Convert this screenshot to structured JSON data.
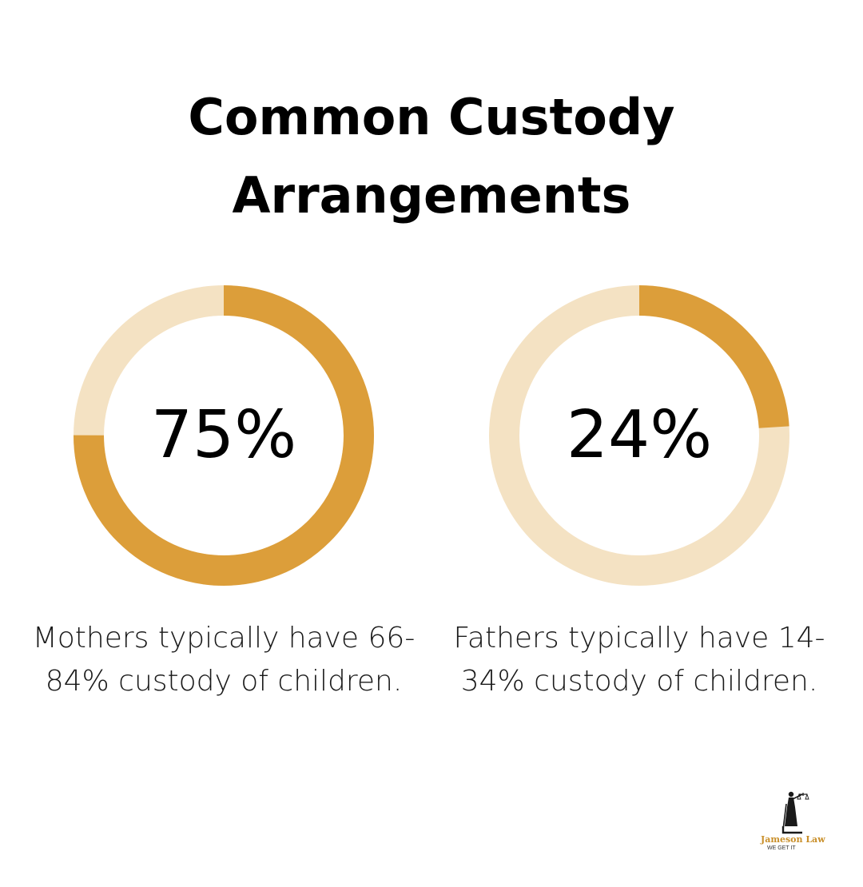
{
  "title": "Common Custody Arrangements",
  "colors": {
    "accent": "#dc9e3a",
    "track": "#f4e2c3",
    "text": "#000000"
  },
  "chart_data": [
    {
      "type": "pie",
      "values": [
        75,
        25
      ],
      "value_label": "75%",
      "caption": "Mothers typically have 66-84% custody of children."
    },
    {
      "type": "pie",
      "values": [
        24,
        76
      ],
      "value_label": "24%",
      "caption": "Fathers typically have 14-34% custody of children."
    }
  ],
  "logo": {
    "icon": "lady-justice-icon",
    "name": "Jameson Law",
    "tagline": "WE GET IT"
  }
}
